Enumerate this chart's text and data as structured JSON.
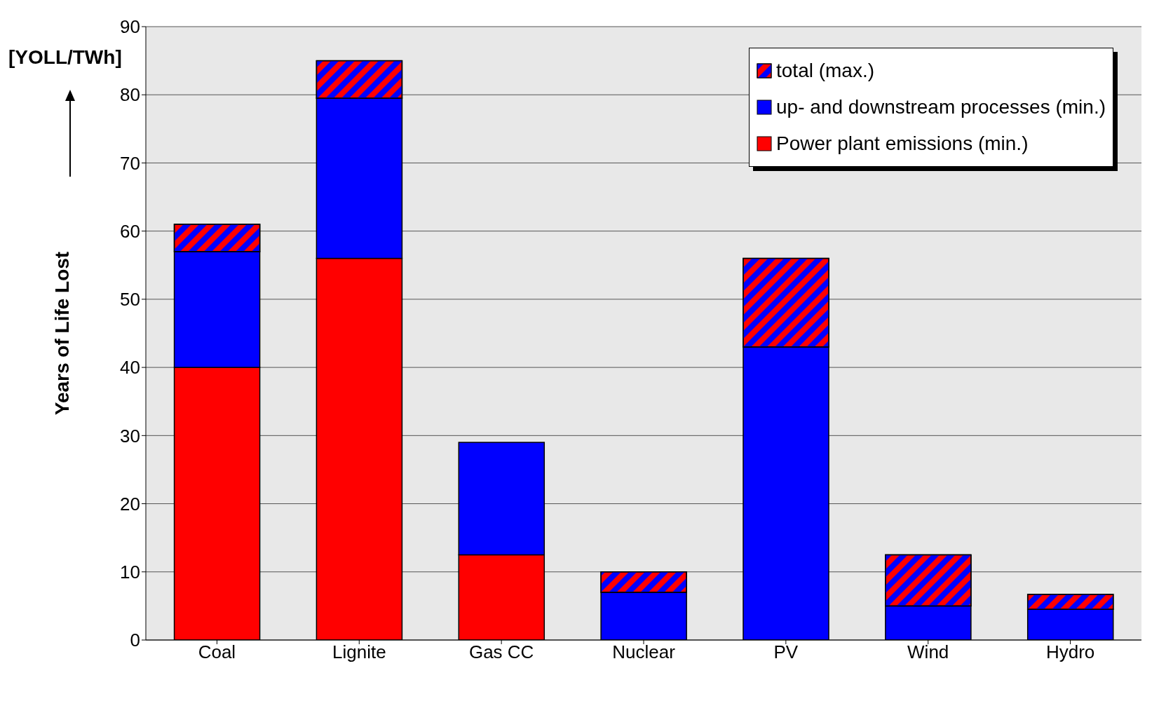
{
  "chart_data": {
    "type": "bar",
    "ylabel": "Years of Life Lost",
    "annotations": [
      "[YOLL/TWh]"
    ],
    "categories": [
      "Coal",
      "Lignite",
      "Gas CC",
      "Nuclear",
      "PV",
      "Wind",
      "Hydro"
    ],
    "stacked": true,
    "ylim": [
      0,
      90
    ],
    "yticks": [
      0,
      10,
      20,
      30,
      40,
      50,
      60,
      70,
      80,
      90
    ],
    "grid": "y",
    "legend": "top right",
    "series": [
      {
        "name": "Power plant emissions (min.)",
        "color": "#ff0000",
        "values": [
          40,
          56,
          12.5,
          0,
          0,
          0,
          0
        ]
      },
      {
        "name": "up- and downstream processes (min.)",
        "color": "#0000ff",
        "values": [
          17,
          23.5,
          16.5,
          7,
          43,
          5,
          4.5
        ]
      },
      {
        "name": "total (max.)",
        "color": "#ff0000",
        "values": [
          4,
          5.5,
          0,
          3,
          13,
          7.5,
          2.2
        ]
      }
    ]
  }
}
